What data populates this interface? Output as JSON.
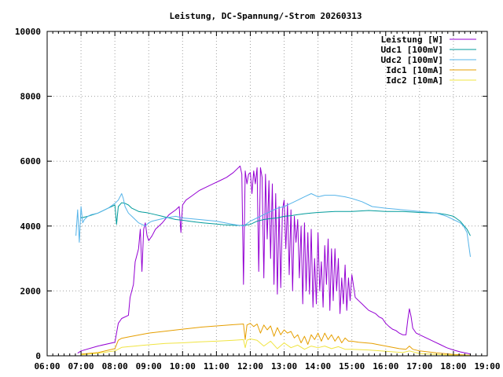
{
  "chart_data": {
    "type": "line",
    "title": "Leistung, DC-Spannung/-Strom 20260313",
    "xlabel": "",
    "ylabel": "",
    "x_ticks": [
      "06:00",
      "07:00",
      "08:00",
      "09:00",
      "10:00",
      "11:00",
      "12:00",
      "13:00",
      "14:00",
      "15:00",
      "16:00",
      "17:00",
      "18:00",
      "19:00"
    ],
    "xlim": [
      6,
      19
    ],
    "ylim": [
      0,
      10000
    ],
    "y_ticks": [
      0,
      2000,
      4000,
      6000,
      8000,
      10000
    ],
    "y_tick_labels": [
      "0",
      "2000",
      "4000",
      "6000",
      "8000",
      "10000"
    ],
    "grid": true,
    "legend_position": "top-right",
    "series": [
      {
        "name": "Leistung [W]",
        "color": "#9400d3",
        "x": [
          6.9,
          7.0,
          7.5,
          8.0,
          8.1,
          8.2,
          8.4,
          8.45,
          8.55,
          8.6,
          8.7,
          8.75,
          8.8,
          8.85,
          8.9,
          8.95,
          9.0,
          9.1,
          9.2,
          9.4,
          9.6,
          9.8,
          9.9,
          9.95,
          10.0,
          10.1,
          10.3,
          10.5,
          10.7,
          10.9,
          11.1,
          11.3,
          11.5,
          11.7,
          11.75,
          11.8,
          11.85,
          11.9,
          11.95,
          12.0,
          12.05,
          12.1,
          12.15,
          12.2,
          12.25,
          12.3,
          12.35,
          12.4,
          12.45,
          12.5,
          12.55,
          12.6,
          12.65,
          12.7,
          12.75,
          12.8,
          12.85,
          12.9,
          12.95,
          13.0,
          13.05,
          13.1,
          13.15,
          13.2,
          13.25,
          13.3,
          13.35,
          13.4,
          13.45,
          13.5,
          13.55,
          13.6,
          13.65,
          13.7,
          13.75,
          13.8,
          13.85,
          13.9,
          13.95,
          14.0,
          14.05,
          14.1,
          14.15,
          14.2,
          14.25,
          14.3,
          14.35,
          14.4,
          14.45,
          14.5,
          14.55,
          14.6,
          14.65,
          14.7,
          14.75,
          14.8,
          14.85,
          14.9,
          14.95,
          15.0,
          15.1,
          15.2,
          15.3,
          15.4,
          15.5,
          15.6,
          15.7,
          15.8,
          15.9,
          16.0,
          16.1,
          16.2,
          16.3,
          16.4,
          16.5,
          16.6,
          16.65,
          16.7,
          16.75,
          16.8,
          16.9,
          17.0,
          17.2,
          17.4,
          17.6,
          17.8,
          18.0,
          18.2,
          18.4,
          18.5
        ],
        "y": [
          80,
          150,
          300,
          420,
          1000,
          1150,
          1250,
          1800,
          2200,
          2900,
          3300,
          3900,
          2600,
          3900,
          4100,
          3700,
          3550,
          3700,
          3900,
          4100,
          4350,
          4500,
          4600,
          3800,
          4650,
          4800,
          4950,
          5100,
          5200,
          5300,
          5400,
          5500,
          5650,
          5850,
          5600,
          2200,
          5700,
          5300,
          5600,
          5650,
          5000,
          5700,
          5300,
          5800,
          2600,
          5800,
          5500,
          2400,
          5600,
          3600,
          5400,
          3000,
          5300,
          2200,
          5000,
          1900,
          4600,
          2100,
          4500,
          4800,
          3300,
          4700,
          2500,
          4500,
          2000,
          4300,
          3500,
          4200,
          2400,
          4000,
          1600,
          4100,
          2000,
          3800,
          1900,
          3900,
          1500,
          3000,
          1600,
          3800,
          2000,
          2900,
          1500,
          3400,
          2200,
          3600,
          1400,
          3300,
          1700,
          3300,
          2000,
          3000,
          1300,
          2400,
          1600,
          2800,
          1400,
          2400,
          1700,
          2500,
          1800,
          1700,
          1600,
          1500,
          1400,
          1350,
          1300,
          1200,
          1150,
          1000,
          900,
          820,
          780,
          700,
          650,
          650,
          1100,
          1450,
          1200,
          850,
          700,
          650,
          550,
          450,
          350,
          250,
          180,
          120,
          80,
          50
        ]
      },
      {
        "name": "Udc1 [100mV]",
        "color": "#009b9b",
        "x": [
          7.0,
          7.2,
          7.5,
          7.8,
          8.0,
          8.05,
          8.1,
          8.2,
          8.3,
          8.4,
          8.5,
          8.6,
          8.7,
          8.8,
          8.9,
          9.0,
          9.2,
          9.4,
          9.6,
          9.8,
          10.0,
          10.2,
          10.4,
          10.6,
          10.8,
          11.0,
          11.2,
          11.4,
          11.6,
          11.8,
          12.0,
          12.2,
          12.4,
          12.6,
          12.8,
          13.0,
          13.2,
          13.4,
          13.6,
          13.8,
          14.0,
          14.5,
          15.0,
          15.5,
          16.0,
          16.5,
          17.0,
          17.5,
          17.8,
          18.0,
          18.2,
          18.4,
          18.5
        ],
        "y": [
          4250,
          4300,
          4400,
          4550,
          4650,
          4050,
          4600,
          4720,
          4700,
          4650,
          4550,
          4500,
          4450,
          4430,
          4420,
          4400,
          4350,
          4300,
          4250,
          4200,
          4180,
          4150,
          4120,
          4100,
          4080,
          4060,
          4040,
          4030,
          4020,
          4020,
          4050,
          4150,
          4200,
          4230,
          4250,
          4300,
          4320,
          4350,
          4380,
          4400,
          4420,
          4450,
          4450,
          4480,
          4450,
          4450,
          4420,
          4400,
          4350,
          4300,
          4150,
          3900,
          3700
        ]
      },
      {
        "name": "Udc2 [100mV]",
        "color": "#56b4e9",
        "x": [
          6.85,
          6.9,
          6.95,
          7.0,
          7.05,
          7.1,
          7.2,
          7.3,
          7.5,
          7.8,
          8.0,
          8.1,
          8.2,
          8.25,
          8.3,
          8.4,
          8.5,
          8.6,
          8.7,
          8.8,
          8.9,
          9.0,
          9.1,
          9.3,
          9.5,
          9.8,
          10.0,
          10.5,
          11.0,
          11.5,
          11.8,
          12.0,
          12.2,
          12.4,
          12.6,
          12.8,
          13.0,
          13.2,
          13.4,
          13.6,
          13.8,
          14.0,
          14.2,
          14.5,
          14.8,
          15.0,
          15.3,
          15.6,
          16.0,
          16.5,
          17.0,
          17.5,
          17.8,
          18.0,
          18.2,
          18.3,
          18.4,
          18.5
        ],
        "y": [
          3700,
          4500,
          3500,
          4600,
          4100,
          4200,
          4300,
          4350,
          4400,
          4550,
          4700,
          4800,
          5000,
          4850,
          4600,
          4400,
          4300,
          4200,
          4100,
          4050,
          4000,
          4100,
          4150,
          4200,
          4250,
          4300,
          4250,
          4200,
          4150,
          4050,
          4000,
          4150,
          4250,
          4350,
          4450,
          4550,
          4600,
          4700,
          4800,
          4900,
          5000,
          4900,
          4950,
          4950,
          4900,
          4850,
          4750,
          4600,
          4550,
          4500,
          4450,
          4400,
          4300,
          4200,
          4100,
          4000,
          3800,
          3050
        ]
      },
      {
        "name": "Idc1 [10mA]",
        "color": "#e69f00",
        "x": [
          7.0,
          7.5,
          8.0,
          8.1,
          8.2,
          8.4,
          8.6,
          8.8,
          9.0,
          9.5,
          10.0,
          10.5,
          11.0,
          11.5,
          11.8,
          11.85,
          11.9,
          12.0,
          12.1,
          12.2,
          12.3,
          12.4,
          12.5,
          12.6,
          12.7,
          12.8,
          12.9,
          13.0,
          13.1,
          13.2,
          13.3,
          13.4,
          13.5,
          13.6,
          13.7,
          13.8,
          13.9,
          14.0,
          14.1,
          14.2,
          14.3,
          14.4,
          14.5,
          14.6,
          14.7,
          14.8,
          14.9,
          15.0,
          15.2,
          15.4,
          15.6,
          15.8,
          16.0,
          16.2,
          16.4,
          16.6,
          16.7,
          16.8,
          17.0,
          17.5,
          18.0,
          18.5
        ],
        "y": [
          50,
          100,
          220,
          480,
          540,
          580,
          620,
          660,
          700,
          760,
          820,
          880,
          920,
          960,
          980,
          500,
          950,
          1000,
          900,
          980,
          700,
          950,
          800,
          920,
          600,
          870,
          650,
          800,
          700,
          750,
          550,
          650,
          400,
          600,
          350,
          650,
          500,
          700,
          450,
          700,
          500,
          650,
          450,
          600,
          400,
          550,
          450,
          450,
          420,
          400,
          380,
          340,
          300,
          260,
          220,
          200,
          300,
          200,
          150,
          90,
          40,
          20
        ]
      },
      {
        "name": "Idc2 [10mA]",
        "color": "#f0e442",
        "x": [
          7.0,
          7.5,
          8.0,
          8.2,
          8.4,
          8.6,
          8.8,
          9.0,
          9.5,
          10.0,
          10.5,
          11.0,
          11.5,
          11.8,
          11.85,
          11.9,
          12.0,
          12.2,
          12.4,
          12.6,
          12.8,
          13.0,
          13.2,
          13.4,
          13.6,
          13.8,
          14.0,
          14.2,
          14.4,
          14.6,
          14.8,
          15.0,
          15.5,
          16.0,
          16.5,
          16.7,
          17.0,
          17.5,
          18.0,
          18.5
        ],
        "y": [
          30,
          80,
          150,
          260,
          280,
          300,
          320,
          340,
          380,
          400,
          430,
          450,
          480,
          500,
          250,
          480,
          520,
          480,
          300,
          450,
          220,
          400,
          250,
          330,
          200,
          300,
          250,
          300,
          220,
          280,
          200,
          200,
          180,
          140,
          100,
          150,
          70,
          40,
          20,
          10
        ]
      }
    ]
  }
}
